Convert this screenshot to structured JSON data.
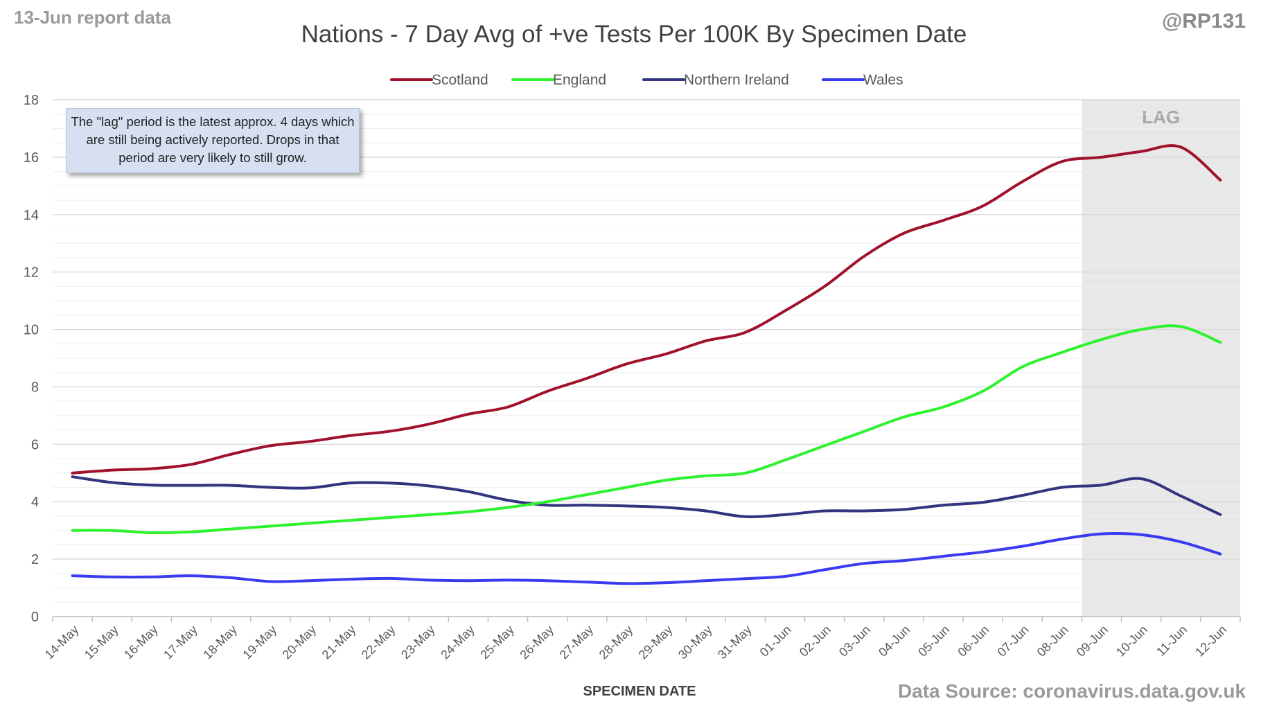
{
  "report_label": "13-Jun report data",
  "author_handle": "@RP131",
  "source_label": "Data Source: coronavirus.data.gov.uk",
  "note_text": "The \"lag\" period is the latest approx. 4 days which are still being actively reported.  Drops in that period are very likely to still grow.",
  "colors": {
    "scotland": "#a0112b",
    "england": "#2ef22e",
    "northern_ireland": "#32347f",
    "wales": "#3a3af0",
    "lag_band": "#e8e8e8",
    "gridline": "#d9d9d9"
  },
  "chart_data": {
    "type": "line",
    "title": "Nations - 7 Day Avg of +ve Tests Per 100K By Specimen Date",
    "xlabel": "SPECIMEN DATE",
    "ylabel": "",
    "ylim": [
      0,
      18
    ],
    "yticks": [
      0,
      2,
      4,
      6,
      8,
      10,
      12,
      14,
      16,
      18
    ],
    "grid": true,
    "minor_grid": true,
    "legend_position": "top",
    "lag_label": "LAG",
    "lag_start": "09-Jun",
    "lag_end": "12-Jun",
    "categories": [
      "14-May",
      "15-May",
      "16-May",
      "17-May",
      "18-May",
      "19-May",
      "20-May",
      "21-May",
      "22-May",
      "23-May",
      "24-May",
      "25-May",
      "26-May",
      "27-May",
      "28-May",
      "29-May",
      "30-May",
      "31-May",
      "01-Jun",
      "02-Jun",
      "03-Jun",
      "04-Jun",
      "05-Jun",
      "06-Jun",
      "07-Jun",
      "08-Jun",
      "09-Jun",
      "10-Jun",
      "11-Jun",
      "12-Jun"
    ],
    "series": [
      {
        "name": "Scotland",
        "color_key": "scotland",
        "values": [
          5.0,
          5.1,
          5.15,
          5.3,
          5.65,
          5.95,
          6.1,
          6.3,
          6.45,
          6.7,
          7.05,
          7.3,
          7.85,
          8.3,
          8.8,
          9.15,
          9.6,
          9.9,
          10.65,
          11.5,
          12.55,
          13.35,
          13.8,
          14.3,
          15.15,
          15.85,
          16.0,
          16.2,
          16.35,
          15.2
        ]
      },
      {
        "name": "England",
        "color_key": "england",
        "values": [
          3.0,
          3.0,
          2.92,
          2.95,
          3.05,
          3.15,
          3.25,
          3.35,
          3.45,
          3.55,
          3.65,
          3.8,
          4.0,
          4.25,
          4.5,
          4.75,
          4.9,
          5.0,
          5.45,
          5.95,
          6.45,
          6.95,
          7.3,
          7.85,
          8.7,
          9.2,
          9.65,
          10.0,
          10.1,
          9.55
        ]
      },
      {
        "name": "Northern Ireland",
        "color_key": "northern_ireland",
        "values": [
          4.87,
          4.67,
          4.58,
          4.57,
          4.57,
          4.5,
          4.48,
          4.65,
          4.65,
          4.55,
          4.35,
          4.05,
          3.88,
          3.88,
          3.85,
          3.8,
          3.68,
          3.48,
          3.55,
          3.68,
          3.68,
          3.73,
          3.88,
          3.98,
          4.22,
          4.5,
          4.58,
          4.8,
          4.2,
          3.55
        ]
      },
      {
        "name": "Wales",
        "color_key": "wales",
        "values": [
          1.42,
          1.38,
          1.38,
          1.42,
          1.35,
          1.22,
          1.25,
          1.3,
          1.33,
          1.27,
          1.25,
          1.27,
          1.25,
          1.2,
          1.15,
          1.18,
          1.25,
          1.32,
          1.4,
          1.63,
          1.85,
          1.95,
          2.1,
          2.25,
          2.45,
          2.7,
          2.88,
          2.85,
          2.6,
          2.18
        ]
      }
    ]
  }
}
